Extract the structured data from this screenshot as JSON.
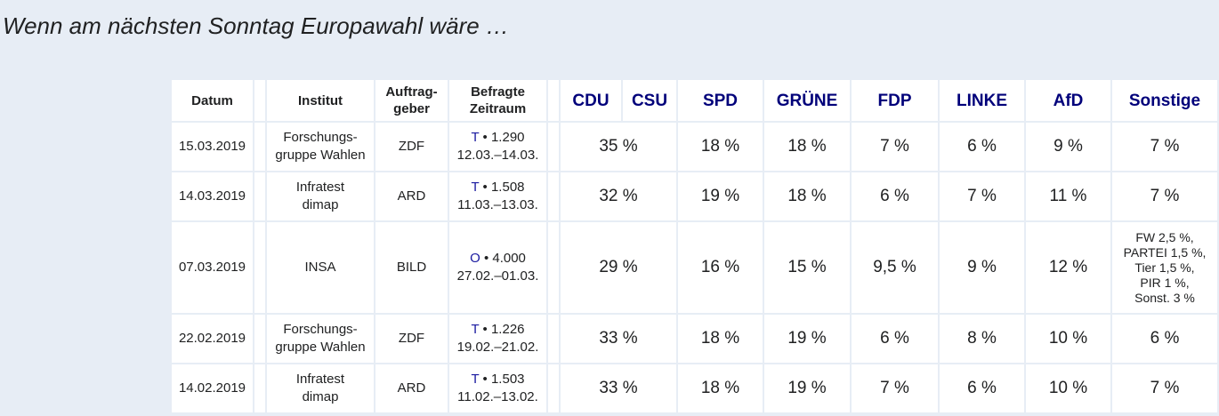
{
  "header": {
    "title": "Wenn am nächsten Sonntag Europawahl wäre …"
  },
  "table": {
    "columns": [
      [
        "Datum"
      ],
      [
        "Institut"
      ],
      [
        "Auftrag-",
        "geber"
      ],
      [
        "Befragte",
        "Zeitraum"
      ],
      [
        "CDU"
      ],
      [
        "CSU"
      ],
      [
        "SPD"
      ],
      [
        "GRÜNE"
      ],
      [
        "FDP"
      ],
      [
        "LINKE"
      ],
      [
        "AfD"
      ],
      [
        "Sonstige"
      ]
    ],
    "rows": [
      {
        "datum": "15.03.2019",
        "institut": [
          "Forschungs-",
          "gruppe Wahlen"
        ],
        "auftraggeber": "ZDF",
        "methode": "T",
        "befragte": "• 1.290",
        "zeitraum": "12.03.–14.03.",
        "cdu_csu": "35 %",
        "spd": "18 %",
        "gruene": "18 %",
        "fdp": "7 %",
        "linke": "6 %",
        "afd": "9 %",
        "sonstige": [
          "7 %"
        ]
      },
      {
        "datum": "14.03.2019",
        "institut": [
          "Infratest",
          "dimap"
        ],
        "auftraggeber": "ARD",
        "methode": "T",
        "befragte": "• 1.508",
        "zeitraum": "11.03.–13.03.",
        "cdu_csu": "32 %",
        "spd": "19 %",
        "gruene": "18 %",
        "fdp": "6 %",
        "linke": "7 %",
        "afd": "11 %",
        "sonstige": [
          "7 %"
        ]
      },
      {
        "datum": "07.03.2019",
        "institut": [
          "INSA"
        ],
        "auftraggeber": "BILD",
        "methode": "O",
        "befragte": "• 4.000",
        "zeitraum": "27.02.–01.03.",
        "cdu_csu": "29 %",
        "spd": "16 %",
        "gruene": "15 %",
        "fdp": "9,5 %",
        "linke": "9 %",
        "afd": "12 %",
        "sonstige": [
          "FW 2,5 %,",
          "PARTEI 1,5 %,",
          "Tier 1,5 %,",
          "PIR 1 %,",
          "Sonst. 3 %"
        ]
      },
      {
        "datum": "22.02.2019",
        "institut": [
          "Forschungs-",
          "gruppe Wahlen"
        ],
        "auftraggeber": "ZDF",
        "methode": "T",
        "befragte": "• 1.226",
        "zeitraum": "19.02.–21.02.",
        "cdu_csu": "33 %",
        "spd": "18 %",
        "gruene": "19 %",
        "fdp": "6 %",
        "linke": "8 %",
        "afd": "10 %",
        "sonstige": [
          "6 %"
        ]
      },
      {
        "datum": "14.02.2019",
        "institut": [
          "Infratest",
          "dimap"
        ],
        "auftraggeber": "ARD",
        "methode": "T",
        "befragte": "• 1.503",
        "zeitraum": "11.02.–13.02.",
        "cdu_csu": "33 %",
        "spd": "18 %",
        "gruene": "19 %",
        "fdp": "7 %",
        "linke": "6 %",
        "afd": "10 %",
        "sonstige": [
          "7 %"
        ]
      }
    ]
  }
}
